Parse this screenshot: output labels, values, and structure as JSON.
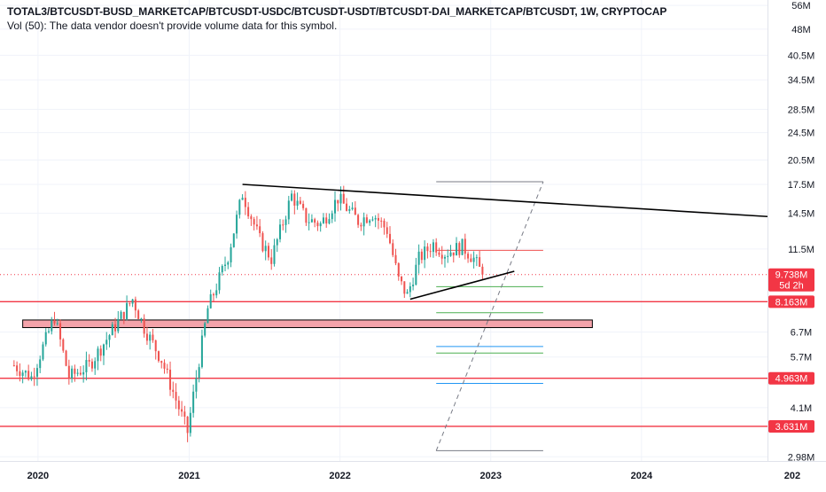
{
  "header": {
    "title": "TOTAL3/BTCUSDT-BUSD_MARKETCAP/BTCUSDT-USDC/BTCUSDT-USDT/BTCUSDT-DAI_MARKETCAP/BTCUSDT, 1W, CRYPTOCAP",
    "volume_note": "Vol (50): The data vendor doesn't provide volume data for this symbol."
  },
  "colors": {
    "up": "#26a69a",
    "down": "#ef5350",
    "level_line": "#f23645",
    "zone_fill": "#f4a3aa",
    "trendline": "#000000",
    "fib_green": "#4caf50",
    "fib_blue": "#2196f3",
    "fib_gray": "#787b86"
  },
  "chart_data": {
    "type": "candlestick",
    "title": "TOTAL3/BTCUSDT-BUSD_MARKETCAP/BTCUSDT-USDC/BTCUSDT-USDT/BTCUSDT-DAI_MARKETCAP/BTCUSDT, 1W, CRYPTOCAP",
    "y_scale": "log",
    "ylim": [
      2.9,
      58
    ],
    "y_unit": "M",
    "y_ticks": [
      "56M",
      "48M",
      "40.5M",
      "34.5M",
      "28.5M",
      "24.5M",
      "20.5M",
      "17.5M",
      "14.5M",
      "11.5M",
      "6.7M",
      "5.7M",
      "4.1M",
      "2.98M"
    ],
    "x_ticks": [
      "2020",
      "2021",
      "2022",
      "2023",
      "2024",
      "202"
    ],
    "xlim": [
      "2019-10-01",
      "2024-11-01"
    ],
    "price_badges": [
      {
        "label": "9.738M",
        "sub": "5d 2h",
        "value": 9.738
      },
      {
        "label": "8.163M",
        "value": 8.163
      },
      {
        "label": "4.963M",
        "value": 4.963
      },
      {
        "label": "3.631M",
        "value": 3.631
      }
    ],
    "key_points": [
      {
        "date": "2019-11-04",
        "value": 5.4
      },
      {
        "date": "2019-12-16",
        "value": 5.0
      },
      {
        "date": "2020-02-10",
        "value": 7.4
      },
      {
        "date": "2020-03-16",
        "value": 5.0
      },
      {
        "date": "2020-05-04",
        "value": 5.4
      },
      {
        "date": "2020-06-15",
        "value": 6.4
      },
      {
        "date": "2020-08-17",
        "value": 8.3
      },
      {
        "date": "2020-09-14",
        "value": 6.9
      },
      {
        "date": "2020-10-26",
        "value": 5.6
      },
      {
        "date": "2020-12-28",
        "value": 3.5
      },
      {
        "date": "2021-01-18",
        "value": 5.0
      },
      {
        "date": "2021-02-15",
        "value": 7.8
      },
      {
        "date": "2021-04-05",
        "value": 11.0
      },
      {
        "date": "2021-05-10",
        "value": 16.5
      },
      {
        "date": "2021-06-21",
        "value": 12.2
      },
      {
        "date": "2021-07-19",
        "value": 10.8
      },
      {
        "date": "2021-09-06",
        "value": 16.3
      },
      {
        "date": "2021-10-11",
        "value": 14.0
      },
      {
        "date": "2021-11-15",
        "value": 13.5
      },
      {
        "date": "2021-12-27",
        "value": 16.0
      },
      {
        "date": "2022-02-14",
        "value": 13.8
      },
      {
        "date": "2022-03-21",
        "value": 14.5
      },
      {
        "date": "2022-04-25",
        "value": 13.0
      },
      {
        "date": "2022-05-23",
        "value": 9.4
      },
      {
        "date": "2022-06-13",
        "value": 8.5
      },
      {
        "date": "2022-07-11",
        "value": 10.8
      },
      {
        "date": "2022-08-15",
        "value": 11.9
      },
      {
        "date": "2022-09-12",
        "value": 11.2
      },
      {
        "date": "2022-10-24",
        "value": 11.7
      },
      {
        "date": "2022-11-21",
        "value": 10.8
      },
      {
        "date": "2022-12-12",
        "value": 9.738
      }
    ],
    "horizontal_levels": [
      8.163,
      4.963,
      3.631
    ],
    "zone": {
      "from": "2019-11-25",
      "to": "2023-09-04",
      "low": 6.9,
      "high": 7.25
    },
    "trendlines": [
      {
        "from": {
          "date": "2021-05-10",
          "value": 17.5
        },
        "to": {
          "date": "2024-11-01",
          "value": 14.2
        }
      },
      {
        "from": {
          "date": "2022-06-20",
          "value": 8.3
        },
        "to": {
          "date": "2023-02-27",
          "value": 9.95
        }
      }
    ],
    "fib_projection": {
      "from": "2022-08-22",
      "to": "2023-05-08",
      "diagonal": {
        "from": {
          "date": "2022-08-22",
          "value": 3.1
        },
        "to": {
          "date": "2023-05-08",
          "value": 17.8
        }
      },
      "levels": [
        {
          "value": 17.8,
          "color": "gray"
        },
        {
          "value": 11.4,
          "color": "red"
        },
        {
          "value": 9.0,
          "color": "green"
        },
        {
          "value": 7.6,
          "color": "green"
        },
        {
          "value": 6.1,
          "color": "blue"
        },
        {
          "value": 5.85,
          "color": "green"
        },
        {
          "value": 4.8,
          "color": "blue"
        },
        {
          "value": 3.1,
          "color": "gray"
        }
      ]
    }
  }
}
